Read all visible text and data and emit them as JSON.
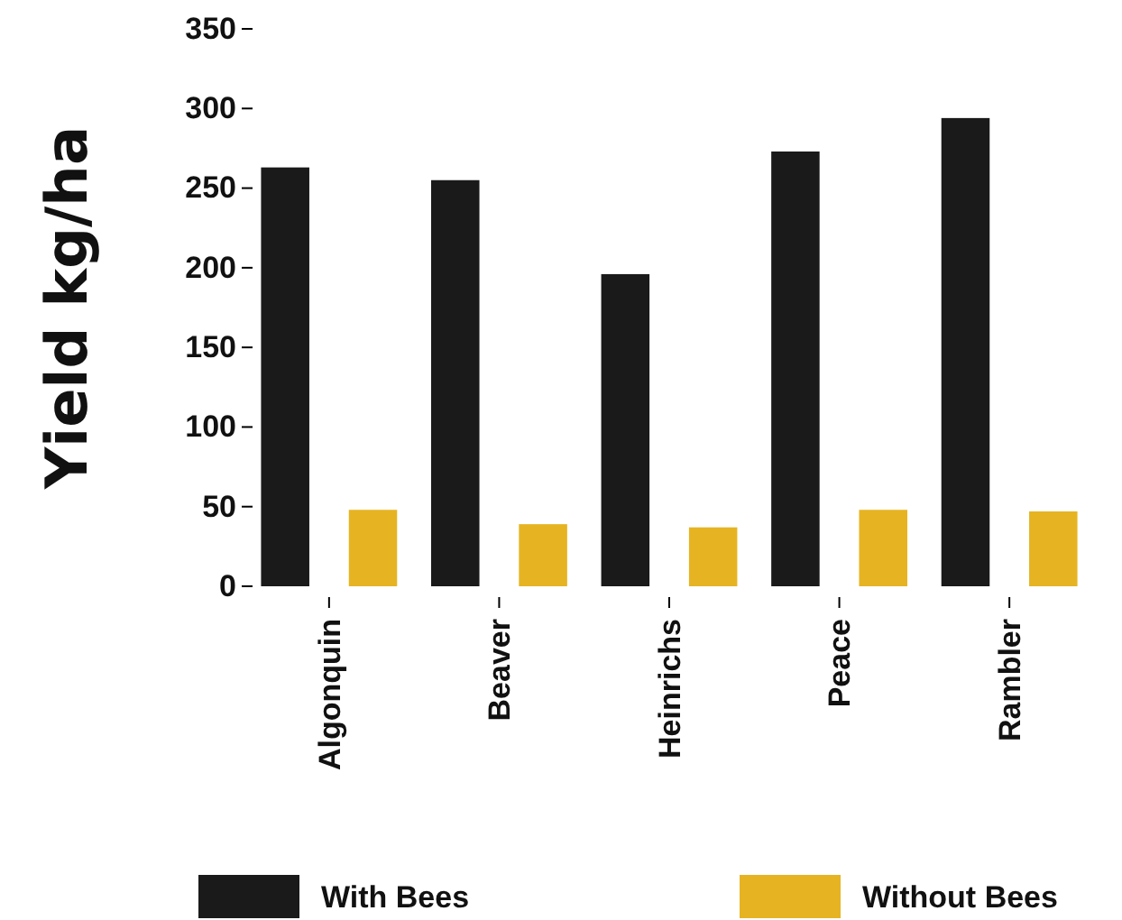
{
  "chart_data": {
    "type": "bar",
    "ylabel": "Yield kg/ha",
    "categories": [
      "Algonquin",
      "Beaver",
      "Heinrichs",
      "Peace",
      "Rambler"
    ],
    "series": [
      {
        "name": "With Bees",
        "color": "#1a1a1a",
        "values": [
          263,
          255,
          196,
          273,
          294
        ]
      },
      {
        "name": "Without Bees",
        "color": "#e6b422",
        "values": [
          48,
          39,
          37,
          48,
          47
        ]
      }
    ],
    "ylim": [
      0,
      350
    ],
    "yticks": [
      0,
      50,
      100,
      150,
      200,
      250,
      300,
      350
    ],
    "grid": false,
    "legend": "bottom"
  }
}
